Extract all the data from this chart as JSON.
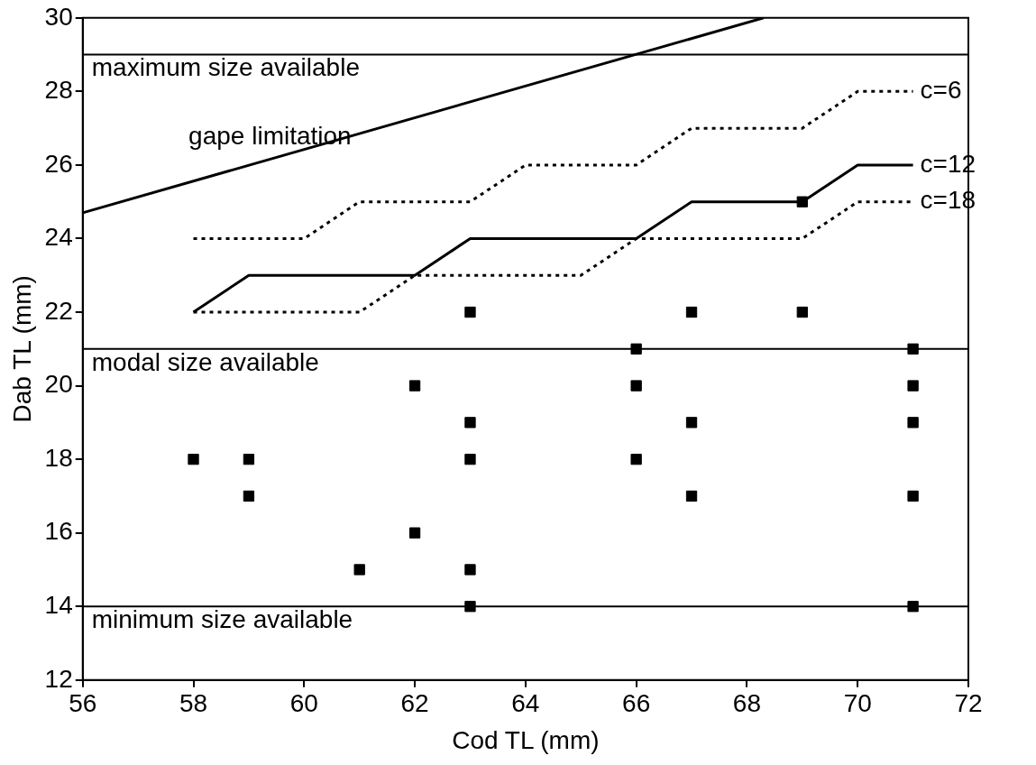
{
  "chart_data": {
    "type": "scatter",
    "xlabel": "Cod TL (mm)",
    "ylabel": "Dab TL (mm)",
    "xlim": [
      56,
      72
    ],
    "xticks": [
      56,
      58,
      60,
      62,
      64,
      66,
      68,
      70,
      72
    ],
    "ylim": [
      12,
      30
    ],
    "yticks": [
      12,
      14,
      16,
      18,
      20,
      22,
      24,
      26,
      28,
      30
    ],
    "grid": false,
    "legend": false,
    "marker": "square",
    "x": [
      58,
      59,
      59,
      61,
      62,
      62,
      63,
      63,
      63,
      63,
      63,
      66,
      66,
      66,
      67,
      67,
      67,
      69,
      69,
      71,
      71,
      71,
      71,
      71
    ],
    "values": [
      18,
      18,
      17,
      15,
      16,
      20,
      22,
      19,
      18,
      15,
      14,
      21,
      20,
      18,
      22,
      19,
      17,
      22,
      25,
      21,
      20,
      19,
      17,
      14
    ],
    "color": "#000000",
    "series": [
      {
        "name": "gape limitation",
        "type": "line",
        "line_style": "solid",
        "marker": "none",
        "color": "#000000",
        "x": [
          56,
          68.3
        ],
        "values": [
          24.7,
          30
        ]
      },
      {
        "name": "c=6",
        "type": "line",
        "line_style": "dotted",
        "marker": "none",
        "color": "#000000",
        "x": [
          58,
          60,
          61,
          63,
          64,
          66,
          67,
          69,
          70,
          71
        ],
        "values": [
          24,
          24,
          25,
          25,
          26,
          26,
          27,
          27,
          28,
          28
        ]
      },
      {
        "name": "c=12",
        "type": "line",
        "line_style": "solid",
        "marker": "none",
        "color": "#000000",
        "x": [
          58,
          59,
          62,
          63,
          66,
          67,
          69,
          70,
          71
        ],
        "values": [
          22,
          23,
          23,
          24,
          24,
          25,
          25,
          26,
          26
        ]
      },
      {
        "name": "c=18",
        "type": "line",
        "line_style": "dotted",
        "marker": "none",
        "color": "#000000",
        "x": [
          58,
          61,
          62,
          65,
          66,
          69,
          70,
          71
        ],
        "values": [
          22,
          22,
          23,
          23,
          24,
          24,
          25,
          25
        ]
      }
    ],
    "ref_lines": [
      {
        "axis": "y",
        "value": 29,
        "label": "maximum size available"
      },
      {
        "axis": "y",
        "value": 21,
        "label": "modal size available"
      },
      {
        "axis": "y",
        "value": 14,
        "label": "minimum size available"
      }
    ]
  }
}
